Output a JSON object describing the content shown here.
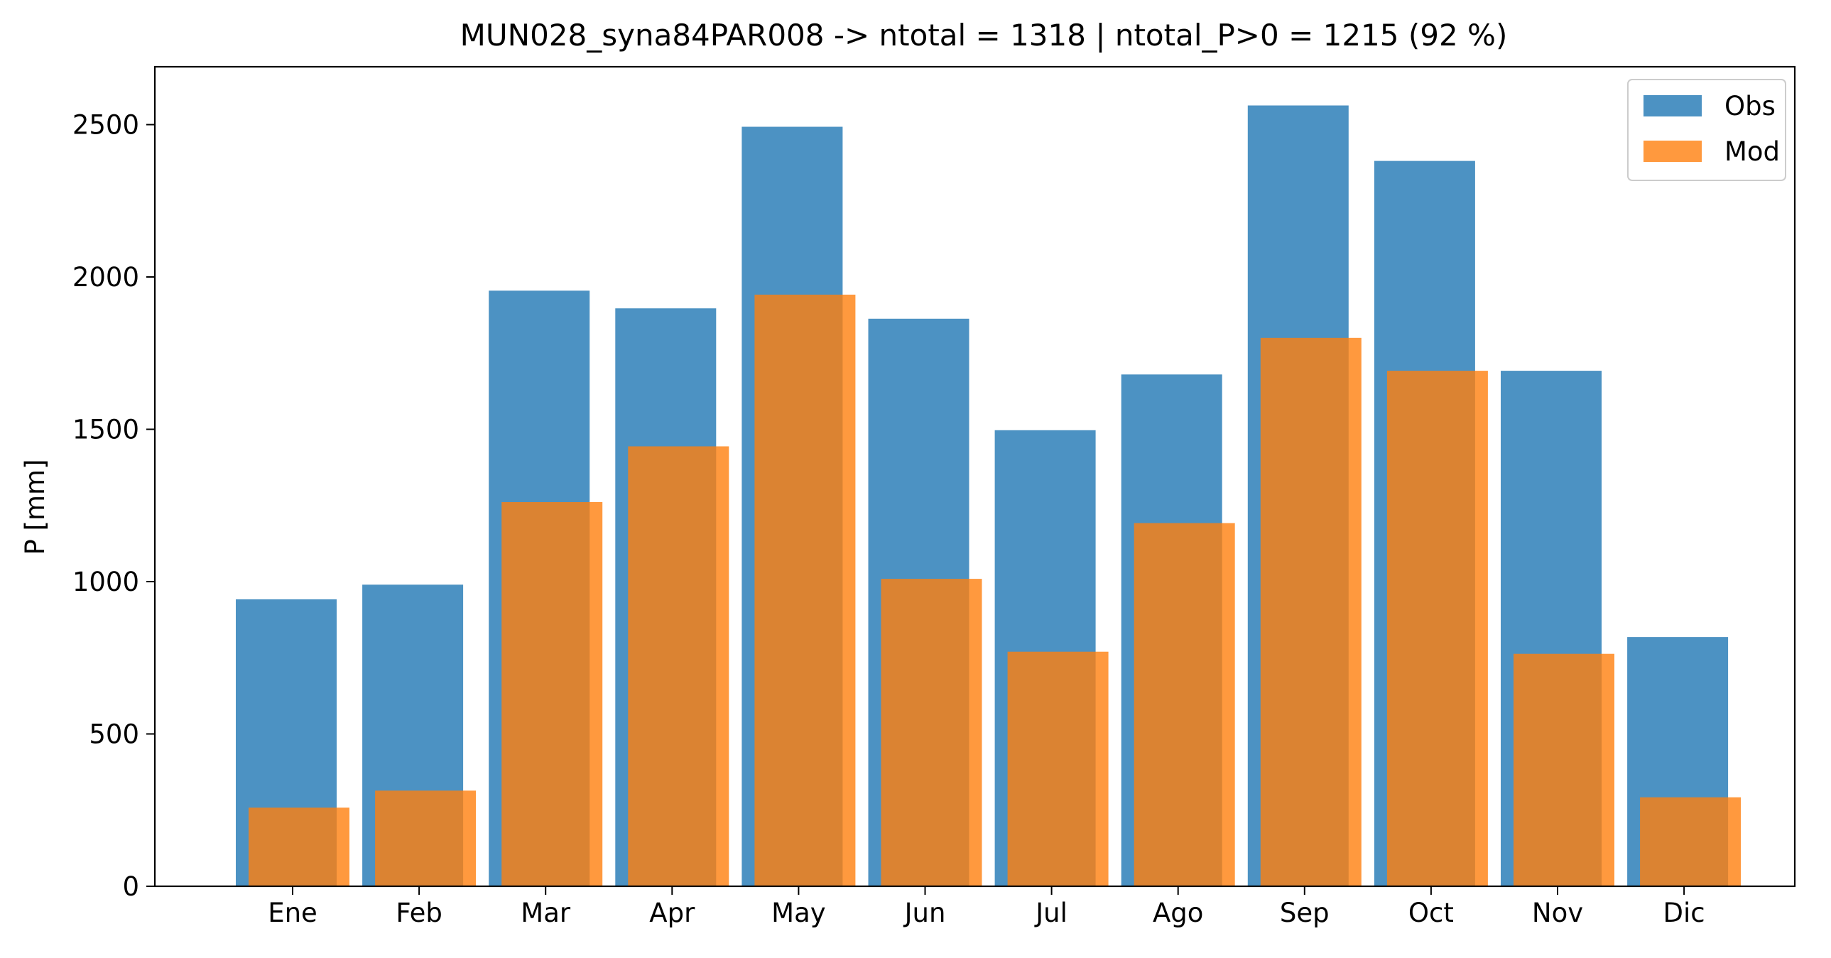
{
  "chart_data": {
    "type": "bar",
    "title": "MUN028_syna84PAR008 -> ntotal = 1318 | ntotal_P>0 = 1215 (92 %)",
    "xlabel": "",
    "ylabel": "P [mm]",
    "ylim": [
      0,
      2690
    ],
    "yticks": [
      0,
      500,
      1000,
      1500,
      2000,
      2500
    ],
    "categories": [
      "Ene",
      "Feb",
      "Mar",
      "Apr",
      "May",
      "Jun",
      "Jul",
      "Ago",
      "Sep",
      "Oct",
      "Nov",
      "Dic"
    ],
    "series": [
      {
        "name": "Obs",
        "color": "#1f77b4",
        "values": [
          942,
          990,
          1955,
          1897,
          2493,
          1863,
          1497,
          1680,
          2563,
          2381,
          1692,
          818
        ]
      },
      {
        "name": "Mod",
        "color": "#ff7f0e",
        "values": [
          258,
          314,
          1261,
          1444,
          1942,
          1009,
          770,
          1192,
          1800,
          1692,
          763,
          292
        ]
      }
    ],
    "grid": false,
    "legend_position": "top-right"
  }
}
